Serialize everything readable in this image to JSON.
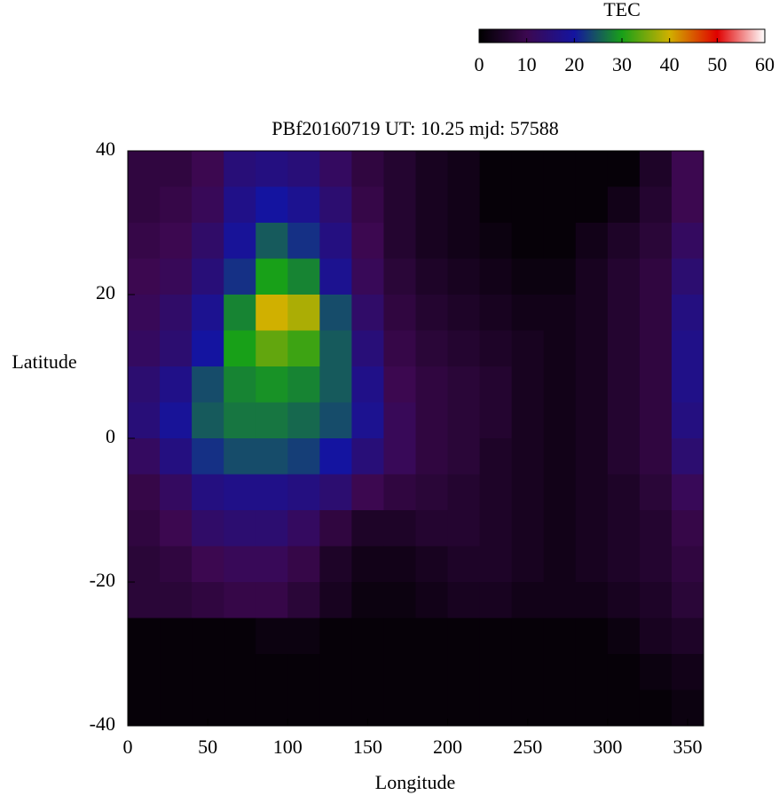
{
  "chart_data": {
    "type": "heatmap",
    "title": "PBf20160719  UT: 10.25  mjd: 57588",
    "x_label": "Longitude",
    "y_label": "Latitude",
    "x": [
      10,
      30,
      50,
      70,
      90,
      110,
      130,
      150,
      170,
      190,
      210,
      230,
      250,
      270,
      290,
      310,
      330,
      350
    ],
    "y": [
      37.5,
      32.5,
      27.5,
      22.5,
      17.5,
      12.5,
      7.5,
      2.5,
      -2.5,
      -7.5,
      -12.5,
      -17.5,
      -22.5,
      -27.5,
      -32.5,
      -37.5
    ],
    "values": [
      [
        8,
        8,
        10,
        15,
        16,
        15,
        12,
        8,
        6,
        4,
        3,
        1,
        1,
        1,
        1,
        1,
        5,
        10
      ],
      [
        8,
        9,
        11,
        17,
        20,
        18,
        14,
        9,
        6,
        4,
        3,
        1,
        1,
        1,
        1,
        3,
        6,
        10
      ],
      [
        9,
        10,
        13,
        19,
        25,
        22,
        16,
        10,
        6,
        4,
        3,
        2,
        1,
        1,
        3,
        5,
        7,
        12
      ],
      [
        10,
        11,
        15,
        22,
        30,
        28,
        18,
        11,
        7,
        5,
        4,
        3,
        2,
        2,
        4,
        6,
        8,
        14
      ],
      [
        11,
        13,
        18,
        28,
        40,
        38,
        24,
        13,
        8,
        6,
        5,
        4,
        3,
        3,
        4,
        6,
        8,
        16
      ],
      [
        12,
        14,
        20,
        30,
        34,
        32,
        25,
        15,
        9,
        7,
        6,
        5,
        4,
        3,
        4,
        6,
        8,
        17
      ],
      [
        14,
        17,
        24,
        28,
        29,
        28,
        25,
        17,
        10,
        8,
        7,
        6,
        4,
        3,
        4,
        6,
        8,
        17
      ],
      [
        15,
        19,
        25,
        27,
        27,
        26,
        24,
        18,
        11,
        8,
        7,
        6,
        4,
        3,
        4,
        6,
        8,
        16
      ],
      [
        12,
        16,
        22,
        24,
        24,
        23,
        20,
        15,
        11,
        8,
        7,
        5,
        4,
        3,
        4,
        6,
        8,
        14
      ],
      [
        9,
        12,
        16,
        17,
        17,
        16,
        14,
        10,
        8,
        7,
        6,
        5,
        4,
        3,
        4,
        5,
        7,
        11
      ],
      [
        8,
        10,
        13,
        14,
        14,
        12,
        8,
        5,
        5,
        6,
        6,
        5,
        4,
        3,
        4,
        5,
        6,
        9
      ],
      [
        7,
        8,
        10,
        11,
        11,
        9,
        5,
        3,
        3,
        4,
        5,
        5,
        4,
        3,
        4,
        5,
        6,
        8
      ],
      [
        7,
        7,
        8,
        9,
        9,
        7,
        4,
        2,
        2,
        3,
        4,
        4,
        3,
        3,
        3,
        4,
        5,
        7
      ],
      [
        1,
        1,
        1,
        1,
        2,
        2,
        1,
        1,
        1,
        1,
        1,
        1,
        1,
        1,
        1,
        2,
        4,
        5
      ],
      [
        1,
        1,
        1,
        1,
        1,
        1,
        1,
        1,
        1,
        1,
        1,
        1,
        1,
        1,
        1,
        1,
        2,
        3
      ],
      [
        1,
        1,
        1,
        1,
        1,
        1,
        1,
        1,
        1,
        1,
        1,
        1,
        1,
        1,
        1,
        1,
        1,
        2
      ]
    ],
    "xlim": [
      0,
      360
    ],
    "xticks": [
      0,
      50,
      100,
      150,
      200,
      250,
      300,
      350
    ],
    "ylim": [
      -40,
      40
    ],
    "yticks": [
      -40,
      -20,
      0,
      20,
      40
    ],
    "colorbar": {
      "label": "TEC",
      "lim": [
        0,
        60
      ],
      "ticks": [
        0,
        10,
        20,
        30,
        40,
        50,
        60
      ],
      "colors": [
        "#000000",
        "#3c0850",
        "#1414a0",
        "#18a018",
        "#d0b000",
        "#e00000",
        "#ffffff"
      ]
    }
  }
}
